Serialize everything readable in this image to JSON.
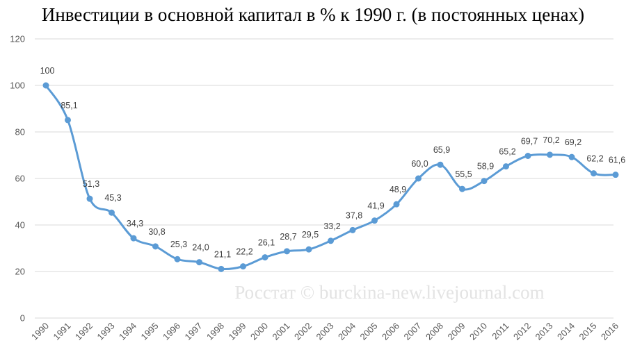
{
  "chart_data": {
    "type": "line",
    "title": "Инвестиции в основной капитал в % к 1990 г. (в постоянных ценах)",
    "watermark": "Росстат © burckina-new.livejournal.com",
    "x": [
      "1990",
      "1991",
      "1992",
      "1993",
      "1994",
      "1995",
      "1996",
      "1997",
      "1998",
      "1999",
      "2000",
      "2001",
      "2002",
      "2003",
      "2004",
      "2005",
      "2006",
      "2007",
      "2008",
      "2009",
      "2010",
      "2011",
      "2012",
      "2013",
      "2014",
      "2015",
      "2016"
    ],
    "values": [
      100,
      85.1,
      51.3,
      45.3,
      34.3,
      30.8,
      25.3,
      24.0,
      21.1,
      22.2,
      26.1,
      28.7,
      29.5,
      33.2,
      37.8,
      41.9,
      48.9,
      60.0,
      65.9,
      55.5,
      58.9,
      65.2,
      69.7,
      70.2,
      69.2,
      62.2,
      61.6
    ],
    "data_labels": [
      "100",
      "85,1",
      "51,3",
      "45,3",
      "34,3",
      "30,8",
      "25,3",
      "24,0",
      "21,1",
      "22,2",
      "26,1",
      "28,7",
      "29,5",
      "33,2",
      "37,8",
      "41,9",
      "48,9",
      "60,0",
      "65,9",
      "55,5",
      "58,9",
      "65,2",
      "69,7",
      "70,2",
      "69,2",
      "62,2",
      "61,6"
    ],
    "yticks": [
      "0",
      "20",
      "40",
      "60",
      "80",
      "100",
      "120"
    ],
    "ylim": [
      0,
      120
    ],
    "grid": true,
    "line_color": "#5b9bd5",
    "grid_color": "#d9d9d9"
  }
}
